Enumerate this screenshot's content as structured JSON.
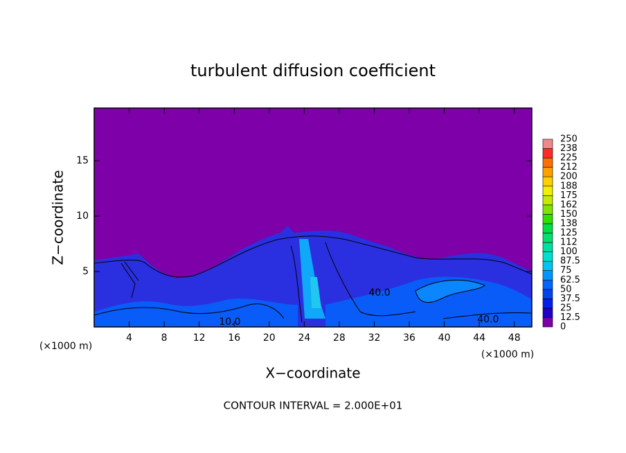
{
  "chart_data": {
    "type": "contour",
    "title": "turbulent diffusion coefficient",
    "x_label": "X−coordinate",
    "y_label": "Z−coordinate",
    "x_unit": "(×1000 m)",
    "x_unit_right": "(×1000 m)",
    "footer": "CONTOUR INTERVAL = 2.000E+01",
    "xlim": [
      0,
      50
    ],
    "ylim": [
      0,
      19.75
    ],
    "xticks": [
      4,
      8,
      12,
      16,
      20,
      24,
      28,
      32,
      36,
      40,
      44,
      48
    ],
    "yticks": [
      5,
      10,
      15
    ],
    "colorbar": {
      "levels": [
        0,
        12.5,
        25,
        37.5,
        50,
        62.5,
        75,
        87.5,
        100,
        112,
        125,
        138,
        150,
        162,
        175,
        188,
        200,
        212,
        225,
        238,
        250
      ],
      "colors": [
        "#7e00a8",
        "#2200c8",
        "#0022e6",
        "#0044f4",
        "#0066ff",
        "#0096ff",
        "#00c4f0",
        "#00e0d0",
        "#00e0a0",
        "#00e070",
        "#00e040",
        "#30e000",
        "#80e400",
        "#c4ea00",
        "#f0f000",
        "#ffd000",
        "#ffa000",
        "#ff7000",
        "#ff2a2a",
        "#f08888"
      ]
    },
    "annotations": [
      {
        "text": "40.0",
        "x": 32.6,
        "y": 2.8
      },
      {
        "text": "40.0",
        "x": 45.0,
        "y": 0.4
      },
      {
        "text": "10.0",
        "x": 15.5,
        "y": 0.2
      }
    ]
  }
}
